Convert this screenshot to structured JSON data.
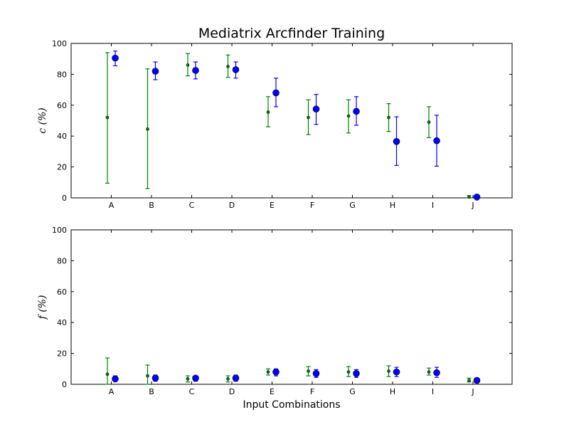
{
  "chart_data": [
    {
      "type": "scatter",
      "title": "Mediatrix Arcfinder Training",
      "xlabel": "",
      "ylabel": "c (%)",
      "ylabel_symbol": "c",
      "ylabel_unit": " (%)",
      "ylim": [
        0,
        100
      ],
      "yticks": [
        0,
        20,
        40,
        60,
        80,
        100
      ],
      "categories": [
        "A",
        "B",
        "C",
        "D",
        "E",
        "F",
        "G",
        "H",
        "I",
        "J"
      ],
      "grid": false,
      "series": [
        {
          "color": "#008000",
          "marker": "small-dot",
          "values": [
            52,
            44.5,
            86,
            85,
            55.5,
            52,
            53,
            52,
            49,
            0.5
          ],
          "err_low": [
            9.5,
            6,
            79,
            78,
            46,
            41,
            42,
            43,
            39,
            0
          ],
          "err_high": [
            94,
            83.5,
            93.5,
            92.5,
            65.5,
            63.5,
            63.5,
            61,
            59,
            1.5
          ]
        },
        {
          "color": "#0000ff",
          "marker": "large-dot",
          "values": [
            90.5,
            82,
            82.5,
            83,
            68,
            57.5,
            56,
            36.5,
            37,
            0.5
          ],
          "err_low": [
            85.5,
            76.5,
            77,
            77.5,
            59,
            47.5,
            47,
            21,
            20.5,
            0
          ],
          "err_high": [
            95,
            88,
            88,
            88,
            77.5,
            67,
            65.5,
            52.5,
            53.5,
            1
          ]
        }
      ]
    },
    {
      "type": "scatter",
      "title": "",
      "xlabel": "Input Combinations",
      "ylabel": "f (%)",
      "ylabel_symbol": "f",
      "ylabel_unit": " (%)",
      "ylim": [
        0,
        100
      ],
      "yticks": [
        0,
        20,
        40,
        60,
        80,
        100
      ],
      "categories": [
        "A",
        "B",
        "C",
        "D",
        "E",
        "F",
        "G",
        "H",
        "I",
        "J"
      ],
      "grid": false,
      "series": [
        {
          "color": "#008000",
          "marker": "small-dot",
          "values": [
            6.5,
            5.5,
            3.5,
            3.5,
            8,
            8.5,
            8,
            8.5,
            8,
            2.5
          ],
          "err_low": [
            0,
            0,
            1.5,
            1.5,
            6,
            5.5,
            5,
            5,
            6,
            1.5
          ],
          "err_high": [
            17,
            12.5,
            5.5,
            5.5,
            10,
            11.5,
            11.5,
            12,
            10.5,
            4
          ]
        },
        {
          "color": "#0000ff",
          "marker": "large-dot",
          "values": [
            3.5,
            4,
            4,
            4,
            8,
            7,
            7,
            8,
            7.5,
            2.5
          ],
          "err_low": [
            2,
            2,
            2,
            2,
            5.5,
            4.5,
            4.5,
            5,
            4.5,
            2
          ],
          "err_high": [
            5.5,
            6,
            5.5,
            6,
            10,
            9.5,
            9.5,
            11,
            11,
            3.5
          ]
        }
      ]
    }
  ]
}
